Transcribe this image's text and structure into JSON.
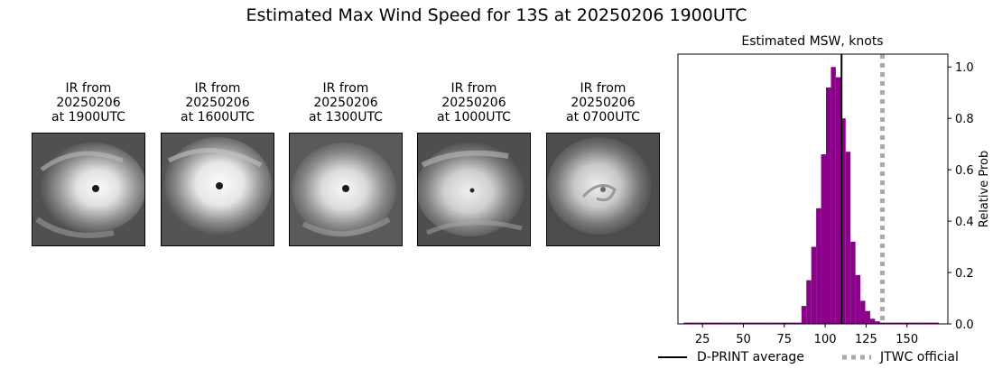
{
  "suptitle": "Estimated Max Wind Speed for 13S at 20250206 1900UTC",
  "panels": [
    {
      "line1": "IR from",
      "line2": "20250206",
      "line3": "at 1900UTC"
    },
    {
      "line1": "IR from",
      "line2": "20250206",
      "line3": "at 1600UTC"
    },
    {
      "line1": "IR from",
      "line2": "20250206",
      "line3": "at 1300UTC"
    },
    {
      "line1": "IR from",
      "line2": "20250206",
      "line3": "at 1000UTC"
    },
    {
      "line1": "IR from",
      "line2": "20250206",
      "line3": "at 0700UTC"
    }
  ],
  "legend": {
    "dprint": "D-PRINT average",
    "jtwc": "JTWC official"
  },
  "colors": {
    "bars": "#8b008b",
    "dprint_line": "#000000",
    "jtwc_line": "#a9a9a9"
  },
  "chart_data": {
    "type": "bar",
    "title": "Estimated MSW, knots",
    "xlabel": "",
    "ylabel": "Relative Prob",
    "xlim": [
      10,
      175
    ],
    "ylim": [
      0,
      1.05
    ],
    "xticks": [
      25,
      50,
      75,
      100,
      125,
      150
    ],
    "yticks": [
      0.0,
      0.2,
      0.4,
      0.6,
      0.8,
      1.0
    ],
    "ytick_labels": [
      "0.0",
      "0.2",
      "0.4",
      "0.6",
      "0.8",
      "1.0"
    ],
    "ytick_side": "right",
    "bin_width": 3,
    "bins": [
      {
        "x": 15,
        "value": 0.005
      },
      {
        "x": 18,
        "value": 0.005
      },
      {
        "x": 21,
        "value": 0.005
      },
      {
        "x": 24,
        "value": 0.005
      },
      {
        "x": 27,
        "value": 0.005
      },
      {
        "x": 30,
        "value": 0.005
      },
      {
        "x": 33,
        "value": 0.005
      },
      {
        "x": 36,
        "value": 0.005
      },
      {
        "x": 39,
        "value": 0.005
      },
      {
        "x": 42,
        "value": 0.005
      },
      {
        "x": 45,
        "value": 0.005
      },
      {
        "x": 48,
        "value": 0.005
      },
      {
        "x": 51,
        "value": 0.005
      },
      {
        "x": 54,
        "value": 0.005
      },
      {
        "x": 57,
        "value": 0.005
      },
      {
        "x": 60,
        "value": 0.005
      },
      {
        "x": 63,
        "value": 0.005
      },
      {
        "x": 66,
        "value": 0.005
      },
      {
        "x": 69,
        "value": 0.005
      },
      {
        "x": 72,
        "value": 0.005
      },
      {
        "x": 75,
        "value": 0.005
      },
      {
        "x": 78,
        "value": 0.005
      },
      {
        "x": 81,
        "value": 0.005
      },
      {
        "x": 84,
        "value": 0.005
      },
      {
        "x": 87,
        "value": 0.07
      },
      {
        "x": 90,
        "value": 0.17
      },
      {
        "x": 93,
        "value": 0.3
      },
      {
        "x": 96,
        "value": 0.45
      },
      {
        "x": 99,
        "value": 0.66
      },
      {
        "x": 102,
        "value": 0.92
      },
      {
        "x": 105,
        "value": 1.0
      },
      {
        "x": 108,
        "value": 0.96
      },
      {
        "x": 111,
        "value": 0.8
      },
      {
        "x": 114,
        "value": 0.67
      },
      {
        "x": 117,
        "value": 0.32
      },
      {
        "x": 120,
        "value": 0.19
      },
      {
        "x": 123,
        "value": 0.09
      },
      {
        "x": 126,
        "value": 0.05
      },
      {
        "x": 129,
        "value": 0.02
      },
      {
        "x": 132,
        "value": 0.01
      },
      {
        "x": 135,
        "value": 0.005
      },
      {
        "x": 138,
        "value": 0.005
      },
      {
        "x": 141,
        "value": 0.005
      },
      {
        "x": 144,
        "value": 0.005
      },
      {
        "x": 147,
        "value": 0.005
      },
      {
        "x": 150,
        "value": 0.005
      },
      {
        "x": 153,
        "value": 0.005
      },
      {
        "x": 156,
        "value": 0.005
      },
      {
        "x": 159,
        "value": 0.005
      },
      {
        "x": 162,
        "value": 0.005
      },
      {
        "x": 165,
        "value": 0.005
      },
      {
        "x": 168,
        "value": 0.005
      }
    ],
    "dprint_average": 110,
    "jtwc_official": 135,
    "legend_position": "bottom"
  }
}
